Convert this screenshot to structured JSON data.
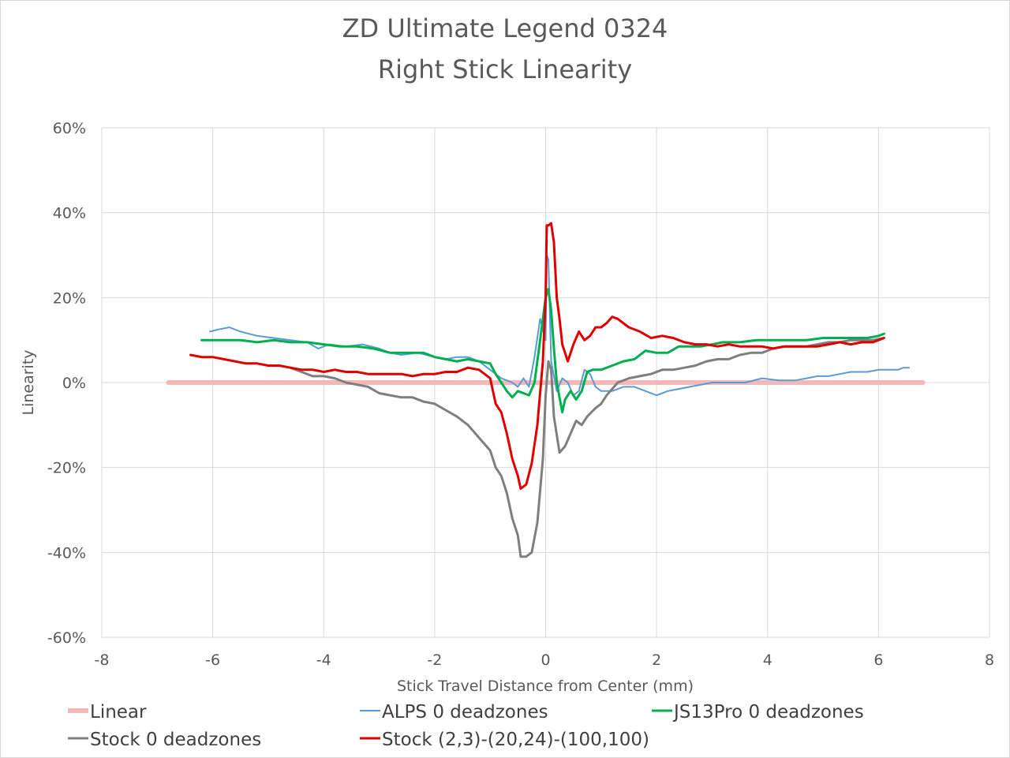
{
  "chart_data": {
    "type": "line",
    "title": "ZD Ultimate Legend 0324",
    "subtitle": "Right Stick Linearity",
    "xlabel": "Stick Travel Distance from Center (mm)",
    "ylabel": "Linearity",
    "xlim": [
      -8,
      8
    ],
    "ylim": [
      -60,
      60
    ],
    "x_ticks": [
      -8,
      -6,
      -4,
      -2,
      0,
      2,
      4,
      6,
      8
    ],
    "x_tick_labels": [
      "-8",
      "-6",
      "-4",
      "-2",
      "0",
      "2",
      "4",
      "6",
      "8"
    ],
    "y_ticks": [
      60,
      40,
      20,
      0,
      -20,
      -40,
      -60
    ],
    "y_tick_labels": [
      "60%",
      "40%",
      "20%",
      "0%",
      "-20%",
      "-40%",
      "-60%"
    ],
    "grid": true,
    "legend_position": "bottom",
    "series": [
      {
        "name": "Linear",
        "color": "#f4b8b8",
        "width": 6,
        "points": [
          [
            -6.8,
            0
          ],
          [
            6.8,
            0
          ]
        ]
      },
      {
        "name": "ALPS 0 deadzones",
        "color": "#5b9bd5",
        "width": 2,
        "points": [
          [
            -6.05,
            12
          ],
          [
            -5.9,
            12.5
          ],
          [
            -5.7,
            13
          ],
          [
            -5.5,
            12
          ],
          [
            -5.2,
            11
          ],
          [
            -4.9,
            10.5
          ],
          [
            -4.6,
            10
          ],
          [
            -4.3,
            9.5
          ],
          [
            -4.1,
            8
          ],
          [
            -3.9,
            9
          ],
          [
            -3.6,
            8.5
          ],
          [
            -3.3,
            9
          ],
          [
            -3.0,
            8
          ],
          [
            -2.8,
            7
          ],
          [
            -2.6,
            6.5
          ],
          [
            -2.3,
            7
          ],
          [
            -2.0,
            6
          ],
          [
            -1.8,
            5.5
          ],
          [
            -1.6,
            6
          ],
          [
            -1.4,
            6
          ],
          [
            -1.2,
            5
          ],
          [
            -1.0,
            3
          ],
          [
            -0.8,
            1
          ],
          [
            -0.6,
            0
          ],
          [
            -0.5,
            -1
          ],
          [
            -0.4,
            1
          ],
          [
            -0.3,
            -1
          ],
          [
            -0.2,
            6
          ],
          [
            -0.1,
            15
          ],
          [
            0.0,
            10
          ],
          [
            0.02,
            30
          ],
          [
            0.05,
            29
          ],
          [
            0.1,
            5
          ],
          [
            0.2,
            -2
          ],
          [
            0.3,
            1
          ],
          [
            0.4,
            0
          ],
          [
            0.5,
            -3
          ],
          [
            0.6,
            -2
          ],
          [
            0.7,
            3
          ],
          [
            0.8,
            2
          ],
          [
            0.9,
            -1
          ],
          [
            1.0,
            -2
          ],
          [
            1.2,
            -2
          ],
          [
            1.4,
            -1
          ],
          [
            1.6,
            -1
          ],
          [
            1.8,
            -2
          ],
          [
            2.0,
            -3
          ],
          [
            2.2,
            -2
          ],
          [
            2.4,
            -1.5
          ],
          [
            2.6,
            -1
          ],
          [
            2.8,
            -0.5
          ],
          [
            3.0,
            0
          ],
          [
            3.3,
            0
          ],
          [
            3.6,
            0
          ],
          [
            3.9,
            1
          ],
          [
            4.2,
            0.5
          ],
          [
            4.5,
            0.5
          ],
          [
            4.7,
            1
          ],
          [
            4.9,
            1.5
          ],
          [
            5.1,
            1.5
          ],
          [
            5.3,
            2
          ],
          [
            5.5,
            2.5
          ],
          [
            5.8,
            2.5
          ],
          [
            6.0,
            3
          ],
          [
            6.2,
            3
          ],
          [
            6.35,
            3
          ],
          [
            6.45,
            3.5
          ],
          [
            6.55,
            3.5
          ]
        ]
      },
      {
        "name": "JS13Pro 0 deadzones",
        "color": "#00b050",
        "width": 3,
        "points": [
          [
            -6.2,
            10
          ],
          [
            -5.9,
            10
          ],
          [
            -5.5,
            10
          ],
          [
            -5.2,
            9.5
          ],
          [
            -4.9,
            10
          ],
          [
            -4.6,
            9.5
          ],
          [
            -4.3,
            9.5
          ],
          [
            -4.0,
            9
          ],
          [
            -3.7,
            8.5
          ],
          [
            -3.4,
            8.5
          ],
          [
            -3.1,
            8
          ],
          [
            -2.8,
            7
          ],
          [
            -2.5,
            7
          ],
          [
            -2.2,
            7
          ],
          [
            -2.0,
            6
          ],
          [
            -1.8,
            5.5
          ],
          [
            -1.6,
            5
          ],
          [
            -1.4,
            5.5
          ],
          [
            -1.2,
            5
          ],
          [
            -1.0,
            4.5
          ],
          [
            -0.9,
            2
          ],
          [
            -0.8,
            0
          ],
          [
            -0.7,
            -2
          ],
          [
            -0.6,
            -3.5
          ],
          [
            -0.5,
            -2
          ],
          [
            -0.4,
            -2.5
          ],
          [
            -0.3,
            -3
          ],
          [
            -0.2,
            0
          ],
          [
            -0.1,
            10
          ],
          [
            0.0,
            20
          ],
          [
            0.05,
            22
          ],
          [
            0.1,
            17
          ],
          [
            0.15,
            8
          ],
          [
            0.2,
            0
          ],
          [
            0.3,
            -7
          ],
          [
            0.35,
            -4
          ],
          [
            0.45,
            -2
          ],
          [
            0.55,
            -4
          ],
          [
            0.65,
            -2
          ],
          [
            0.75,
            2.5
          ],
          [
            0.85,
            3
          ],
          [
            1.0,
            3
          ],
          [
            1.2,
            4
          ],
          [
            1.4,
            5
          ],
          [
            1.6,
            5.5
          ],
          [
            1.8,
            7.5
          ],
          [
            2.0,
            7
          ],
          [
            2.2,
            7
          ],
          [
            2.4,
            8.5
          ],
          [
            2.6,
            8.5
          ],
          [
            2.8,
            8.5
          ],
          [
            3.0,
            9
          ],
          [
            3.2,
            9.5
          ],
          [
            3.5,
            9.5
          ],
          [
            3.8,
            10
          ],
          [
            4.1,
            10
          ],
          [
            4.4,
            10
          ],
          [
            4.7,
            10
          ],
          [
            5.0,
            10.5
          ],
          [
            5.3,
            10.5
          ],
          [
            5.6,
            10.5
          ],
          [
            5.8,
            10.5
          ],
          [
            6.0,
            11
          ],
          [
            6.1,
            11.5
          ]
        ]
      },
      {
        "name": "Stock 0 deadzones",
        "color": "#7f7f7f",
        "width": 3,
        "points": [
          [
            -4.6,
            3.5
          ],
          [
            -4.4,
            2.5
          ],
          [
            -4.2,
            1.5
          ],
          [
            -4.0,
            1.5
          ],
          [
            -3.8,
            1
          ],
          [
            -3.6,
            0
          ],
          [
            -3.4,
            -0.5
          ],
          [
            -3.2,
            -1
          ],
          [
            -3.0,
            -2.5
          ],
          [
            -2.8,
            -3
          ],
          [
            -2.6,
            -3.5
          ],
          [
            -2.4,
            -3.5
          ],
          [
            -2.2,
            -4.5
          ],
          [
            -2.0,
            -5
          ],
          [
            -1.8,
            -6.5
          ],
          [
            -1.6,
            -8
          ],
          [
            -1.4,
            -10
          ],
          [
            -1.2,
            -13
          ],
          [
            -1.0,
            -16
          ],
          [
            -0.9,
            -20
          ],
          [
            -0.8,
            -22
          ],
          [
            -0.7,
            -26
          ],
          [
            -0.6,
            -32
          ],
          [
            -0.5,
            -36
          ],
          [
            -0.45,
            -41
          ],
          [
            -0.35,
            -41
          ],
          [
            -0.25,
            -40
          ],
          [
            -0.15,
            -33
          ],
          [
            -0.05,
            -18
          ],
          [
            0.0,
            -3
          ],
          [
            0.05,
            5
          ],
          [
            0.1,
            3
          ],
          [
            0.15,
            -8
          ],
          [
            0.25,
            -16.5
          ],
          [
            0.35,
            -15
          ],
          [
            0.45,
            -12
          ],
          [
            0.55,
            -9
          ],
          [
            0.65,
            -10
          ],
          [
            0.75,
            -8
          ],
          [
            0.9,
            -6
          ],
          [
            1.0,
            -5
          ],
          [
            1.1,
            -3
          ],
          [
            1.3,
            0
          ],
          [
            1.5,
            1
          ],
          [
            1.7,
            1.5
          ],
          [
            1.9,
            2
          ],
          [
            2.1,
            3
          ],
          [
            2.3,
            3
          ],
          [
            2.5,
            3.5
          ],
          [
            2.7,
            4
          ],
          [
            2.9,
            5
          ],
          [
            3.1,
            5.5
          ],
          [
            3.3,
            5.5
          ],
          [
            3.5,
            6.5
          ],
          [
            3.7,
            7
          ],
          [
            3.9,
            7
          ],
          [
            4.1,
            8
          ],
          [
            4.3,
            8.5
          ],
          [
            4.5,
            8.5
          ],
          [
            4.7,
            8.5
          ],
          [
            4.9,
            9
          ],
          [
            5.1,
            9.5
          ],
          [
            5.3,
            9.5
          ],
          [
            5.5,
            10
          ],
          [
            5.7,
            10
          ],
          [
            5.9,
            10
          ],
          [
            6.1,
            10.5
          ]
        ]
      },
      {
        "name": "Stock (2,3)-(20,24)-(100,100)",
        "color": "#e00000",
        "width": 3,
        "points": [
          [
            -6.4,
            6.5
          ],
          [
            -6.2,
            6
          ],
          [
            -6.0,
            6
          ],
          [
            -5.8,
            5.5
          ],
          [
            -5.6,
            5
          ],
          [
            -5.4,
            4.5
          ],
          [
            -5.2,
            4.5
          ],
          [
            -5.0,
            4
          ],
          [
            -4.8,
            4
          ],
          [
            -4.6,
            3.5
          ],
          [
            -4.4,
            3
          ],
          [
            -4.2,
            3
          ],
          [
            -4.0,
            2.5
          ],
          [
            -3.8,
            3
          ],
          [
            -3.6,
            2.5
          ],
          [
            -3.4,
            2.5
          ],
          [
            -3.2,
            2
          ],
          [
            -3.0,
            2
          ],
          [
            -2.8,
            2
          ],
          [
            -2.6,
            2
          ],
          [
            -2.4,
            1.5
          ],
          [
            -2.2,
            2
          ],
          [
            -2.0,
            2
          ],
          [
            -1.8,
            2.5
          ],
          [
            -1.6,
            2.5
          ],
          [
            -1.4,
            3.5
          ],
          [
            -1.2,
            3
          ],
          [
            -1.0,
            1
          ],
          [
            -0.9,
            -5
          ],
          [
            -0.8,
            -7
          ],
          [
            -0.7,
            -12
          ],
          [
            -0.6,
            -18
          ],
          [
            -0.5,
            -22
          ],
          [
            -0.45,
            -25
          ],
          [
            -0.35,
            -24
          ],
          [
            -0.25,
            -19
          ],
          [
            -0.15,
            -10
          ],
          [
            -0.05,
            5
          ],
          [
            0.0,
            20
          ],
          [
            0.02,
            37
          ],
          [
            0.05,
            37
          ],
          [
            0.1,
            37.5
          ],
          [
            0.15,
            33
          ],
          [
            0.2,
            20
          ],
          [
            0.25,
            15
          ],
          [
            0.3,
            9
          ],
          [
            0.4,
            5
          ],
          [
            0.5,
            9
          ],
          [
            0.6,
            12
          ],
          [
            0.7,
            10
          ],
          [
            0.8,
            11
          ],
          [
            0.9,
            13
          ],
          [
            1.0,
            13
          ],
          [
            1.1,
            14
          ],
          [
            1.2,
            15.5
          ],
          [
            1.3,
            15
          ],
          [
            1.5,
            13
          ],
          [
            1.7,
            12
          ],
          [
            1.9,
            10.5
          ],
          [
            2.1,
            11
          ],
          [
            2.3,
            10.5
          ],
          [
            2.5,
            9.5
          ],
          [
            2.7,
            9
          ],
          [
            2.9,
            9
          ],
          [
            3.1,
            8.5
          ],
          [
            3.3,
            9
          ],
          [
            3.5,
            8.5
          ],
          [
            3.7,
            8.5
          ],
          [
            3.9,
            8.5
          ],
          [
            4.1,
            8
          ],
          [
            4.3,
            8.5
          ],
          [
            4.5,
            8.5
          ],
          [
            4.7,
            8.5
          ],
          [
            4.9,
            8.5
          ],
          [
            5.1,
            9
          ],
          [
            5.3,
            9.5
          ],
          [
            5.5,
            9
          ],
          [
            5.7,
            9.5
          ],
          [
            5.9,
            9.5
          ],
          [
            6.0,
            10
          ],
          [
            6.1,
            10.5
          ]
        ]
      }
    ]
  }
}
